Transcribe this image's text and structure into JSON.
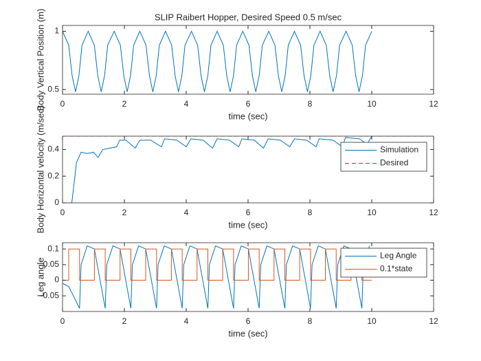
{
  "chart_data": [
    {
      "type": "line",
      "title": "SLIP Raibert Hopper, Desired Speed 0.5 m/sec",
      "x_label": "time (sec)",
      "y_label": "Body Vertical Position (m)",
      "xlim": [
        0,
        12
      ],
      "xticks": [
        0,
        2,
        4,
        6,
        8,
        10,
        12
      ],
      "ylim": [
        0.46,
        1.05
      ],
      "yticks": [
        0.5,
        1
      ],
      "grid": false,
      "series": [
        {
          "color": "#0072bd",
          "x": [
            0,
            0.2,
            0.31,
            0.42,
            0.53,
            0.63,
            0.83,
            1.03,
            1.14,
            1.25,
            1.36,
            1.46,
            1.67,
            1.87,
            1.98,
            2.09,
            2.2,
            2.3,
            2.5,
            2.7,
            2.81,
            2.92,
            3.03,
            3.13,
            3.33,
            3.53,
            3.64,
            3.75,
            3.86,
            3.96,
            4.17,
            4.37,
            4.48,
            4.59,
            4.7,
            4.8,
            5,
            5.2,
            5.31,
            5.42,
            5.53,
            5.63,
            5.83,
            6.03,
            6.14,
            6.25,
            6.36,
            6.46,
            6.67,
            6.87,
            6.98,
            7.09,
            7.2,
            7.3,
            7.5,
            7.7,
            7.81,
            7.92,
            8.03,
            8.13,
            8.33,
            8.53,
            8.64,
            8.75,
            8.86,
            8.96,
            9.17,
            9.37,
            9.48,
            9.59,
            9.7,
            9.8,
            10
          ],
          "values": [
            1,
            0.88,
            0.62,
            0.48,
            0.62,
            0.88,
            1,
            0.88,
            0.62,
            0.48,
            0.62,
            0.88,
            1,
            0.88,
            0.62,
            0.48,
            0.62,
            0.88,
            1,
            0.88,
            0.62,
            0.48,
            0.62,
            0.88,
            1,
            0.88,
            0.62,
            0.48,
            0.62,
            0.88,
            1,
            0.88,
            0.62,
            0.48,
            0.62,
            0.88,
            1,
            0.88,
            0.62,
            0.48,
            0.62,
            0.88,
            1,
            0.88,
            0.62,
            0.48,
            0.62,
            0.88,
            1,
            0.88,
            0.62,
            0.48,
            0.62,
            0.88,
            1,
            0.88,
            0.62,
            0.48,
            0.62,
            0.88,
            1,
            0.88,
            0.62,
            0.48,
            0.62,
            0.88,
            1,
            0.88,
            0.62,
            0.48,
            0.62,
            0.88,
            1
          ]
        }
      ]
    },
    {
      "type": "line",
      "x_label": "time (sec)",
      "y_label": "Body Horizontal velocity (m/sec)",
      "xlim": [
        0,
        12
      ],
      "xticks": [
        0,
        2,
        4,
        6,
        8,
        10,
        12
      ],
      "ylim": [
        0,
        0.5
      ],
      "yticks": [
        0,
        0.2,
        0.4
      ],
      "grid": false,
      "legend": "east",
      "series": [
        {
          "name": "Simulation",
          "color": "#0072bd",
          "x": [
            0,
            0.3,
            0.45,
            0.6,
            0.8,
            1.0,
            1.15,
            1.3,
            1.75,
            1.85,
            2.05,
            2.35,
            2.5,
            2.85,
            3.2,
            3.3,
            3.7,
            4.0,
            4.15,
            4.55,
            4.85,
            5.0,
            5.4,
            5.7,
            5.8,
            6.2,
            6.5,
            6.65,
            7.05,
            7.35,
            7.5,
            7.9,
            8.2,
            8.3,
            8.75,
            9.05,
            9.15,
            9.6,
            9.85,
            10.0
          ],
          "values": [
            0,
            0,
            0.3,
            0.38,
            0.37,
            0.38,
            0.34,
            0.4,
            0.42,
            0.47,
            0.47,
            0.41,
            0.47,
            0.47,
            0.42,
            0.48,
            0.47,
            0.42,
            0.48,
            0.47,
            0.41,
            0.48,
            0.47,
            0.42,
            0.48,
            0.47,
            0.41,
            0.48,
            0.47,
            0.42,
            0.48,
            0.47,
            0.42,
            0.48,
            0.47,
            0.42,
            0.49,
            0.48,
            0.44,
            0.5
          ]
        },
        {
          "name": "Desired",
          "color": "#d62728",
          "style": "dashed",
          "x": [
            0,
            12
          ],
          "values": [
            0.5,
            0.5
          ]
        }
      ]
    },
    {
      "type": "line",
      "x_label": "time (sec)",
      "y_label": "Leg angle",
      "xlim": [
        0,
        12
      ],
      "xticks": [
        0,
        2,
        4,
        6,
        8,
        10,
        12
      ],
      "ylim": [
        -0.1,
        0.12
      ],
      "yticks": [
        -0.05,
        0,
        0.05,
        0.1
      ],
      "grid": false,
      "legend": "northeast",
      "series": [
        {
          "name": "Leg Angle",
          "color": "#0072bd",
          "x": [
            0,
            0.2,
            0.55,
            0.6,
            0.8,
            1.03,
            1.38,
            1.43,
            1.63,
            1.86,
            2.21,
            2.26,
            2.46,
            2.69,
            3.04,
            3.09,
            3.29,
            3.52,
            3.87,
            3.92,
            4.12,
            4.35,
            4.7,
            4.75,
            4.95,
            5.18,
            5.53,
            5.58,
            5.78,
            6.01,
            6.36,
            6.41,
            6.61,
            6.84,
            7.19,
            7.24,
            7.44,
            7.67,
            8.02,
            8.07,
            8.27,
            8.5,
            8.85,
            8.9,
            9.1,
            9.33,
            9.68,
            9.73,
            9.93
          ],
          "values": [
            -0.01,
            -0.02,
            -0.09,
            0.05,
            0.11,
            0.1,
            -0.09,
            0.05,
            0.11,
            0.1,
            -0.09,
            0.05,
            0.11,
            0.1,
            -0.09,
            0.05,
            0.11,
            0.1,
            -0.09,
            0.05,
            0.11,
            0.1,
            -0.09,
            0.05,
            0.11,
            0.1,
            -0.09,
            0.05,
            0.11,
            0.1,
            -0.09,
            0.05,
            0.11,
            0.1,
            -0.09,
            0.05,
            0.11,
            0.1,
            -0.09,
            0.05,
            0.11,
            0.1,
            -0.09,
            0.05,
            0.11,
            0.1,
            -0.09,
            0.05,
            0.11
          ]
        },
        {
          "name": "0.1*state",
          "color": "#d95319",
          "x": [
            0,
            0.2,
            0.2,
            0.55,
            0.55,
            1.03,
            1.03,
            1.38,
            1.38,
            1.86,
            1.86,
            2.21,
            2.21,
            2.69,
            2.69,
            3.04,
            3.04,
            3.52,
            3.52,
            3.87,
            3.87,
            4.35,
            4.35,
            4.7,
            4.7,
            5.18,
            5.18,
            5.53,
            5.53,
            6.01,
            6.01,
            6.36,
            6.36,
            6.84,
            6.84,
            7.19,
            7.19,
            7.67,
            7.67,
            8.02,
            8.02,
            8.5,
            8.5,
            8.85,
            8.85,
            9.33,
            9.33,
            9.68,
            9.68,
            10
          ],
          "values": [
            0,
            0,
            0.1,
            0.1,
            0,
            0,
            0.1,
            0.1,
            0,
            0,
            0.1,
            0.1,
            0,
            0,
            0.1,
            0.1,
            0,
            0,
            0.1,
            0.1,
            0,
            0,
            0.1,
            0.1,
            0,
            0,
            0.1,
            0.1,
            0,
            0,
            0.1,
            0.1,
            0,
            0,
            0.1,
            0.1,
            0,
            0,
            0.1,
            0.1,
            0,
            0,
            0.1,
            0.1,
            0,
            0,
            0.1,
            0.1,
            0,
            0
          ]
        }
      ]
    }
  ]
}
